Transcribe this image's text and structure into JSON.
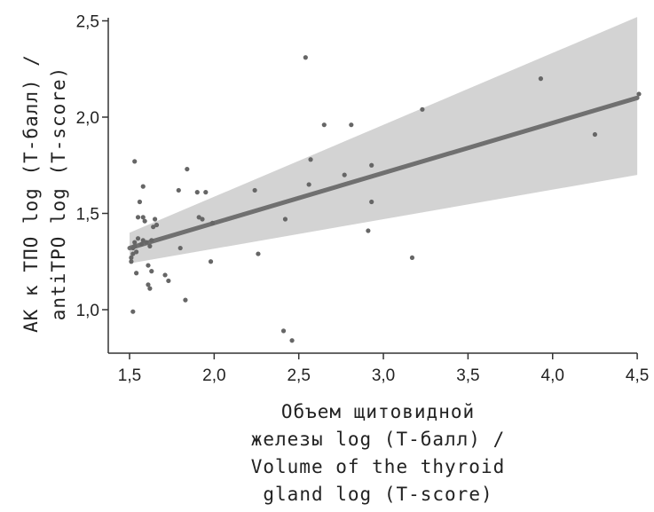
{
  "chart_data": {
    "type": "scatter",
    "xlabel_lines": [
      "Объем щитовидной",
      "железы log (Т-балл) /",
      "Volume of the thyroid",
      "gland log (T-score)"
    ],
    "ylabel_lines": [
      "АК к ТПО log (Т-балл) /",
      "antiTPO log (T-score)"
    ],
    "xlim": [
      1.4,
      4.5
    ],
    "ylim": [
      0.8,
      2.55
    ],
    "x_ticks": [
      1.5,
      2.0,
      2.5,
      3.0,
      3.5,
      4.0,
      4.5
    ],
    "x_tick_labels": [
      "1,5",
      "2,0",
      "2,5",
      "3,0",
      "3,5",
      "4,0",
      "4,5"
    ],
    "y_ticks": [
      1.0,
      1.5,
      2.0,
      2.5
    ],
    "y_tick_labels": [
      "1,0",
      "1,5",
      "2,0",
      "2,5"
    ],
    "grid": false,
    "points": [
      {
        "x": 1.52,
        "y": 0.99
      },
      {
        "x": 1.51,
        "y": 1.25
      },
      {
        "x": 1.51,
        "y": 1.27
      },
      {
        "x": 1.52,
        "y": 1.29
      },
      {
        "x": 1.52,
        "y": 1.32
      },
      {
        "x": 1.53,
        "y": 1.33
      },
      {
        "x": 1.53,
        "y": 1.35
      },
      {
        "x": 1.54,
        "y": 1.3
      },
      {
        "x": 1.54,
        "y": 1.19
      },
      {
        "x": 1.55,
        "y": 1.48
      },
      {
        "x": 1.55,
        "y": 1.37
      },
      {
        "x": 1.56,
        "y": 1.56
      },
      {
        "x": 1.57,
        "y": 1.34
      },
      {
        "x": 1.58,
        "y": 1.36
      },
      {
        "x": 1.58,
        "y": 1.64
      },
      {
        "x": 1.58,
        "y": 1.48
      },
      {
        "x": 1.59,
        "y": 1.46
      },
      {
        "x": 1.6,
        "y": 1.35
      },
      {
        "x": 1.61,
        "y": 1.23
      },
      {
        "x": 1.61,
        "y": 1.13
      },
      {
        "x": 1.62,
        "y": 1.11
      },
      {
        "x": 1.62,
        "y": 1.33
      },
      {
        "x": 1.63,
        "y": 1.36
      },
      {
        "x": 1.63,
        "y": 1.2
      },
      {
        "x": 1.64,
        "y": 1.43
      },
      {
        "x": 1.65,
        "y": 1.47
      },
      {
        "x": 1.66,
        "y": 1.44
      },
      {
        "x": 1.53,
        "y": 1.77
      },
      {
        "x": 1.71,
        "y": 1.18
      },
      {
        "x": 1.73,
        "y": 1.15
      },
      {
        "x": 1.79,
        "y": 1.62
      },
      {
        "x": 1.8,
        "y": 1.32
      },
      {
        "x": 1.83,
        "y": 1.05
      },
      {
        "x": 1.84,
        "y": 1.73
      },
      {
        "x": 1.9,
        "y": 1.61
      },
      {
        "x": 1.91,
        "y": 1.48
      },
      {
        "x": 1.93,
        "y": 1.47
      },
      {
        "x": 1.95,
        "y": 1.61
      },
      {
        "x": 1.98,
        "y": 1.25
      },
      {
        "x": 1.99,
        "y": 1.45
      },
      {
        "x": 2.24,
        "y": 1.62
      },
      {
        "x": 2.26,
        "y": 1.29
      },
      {
        "x": 2.41,
        "y": 0.89
      },
      {
        "x": 2.42,
        "y": 1.47
      },
      {
        "x": 2.46,
        "y": 0.84
      },
      {
        "x": 2.54,
        "y": 2.31
      },
      {
        "x": 2.56,
        "y": 1.65
      },
      {
        "x": 2.57,
        "y": 1.78
      },
      {
        "x": 2.65,
        "y": 1.96
      },
      {
        "x": 2.77,
        "y": 1.7
      },
      {
        "x": 2.81,
        "y": 1.96
      },
      {
        "x": 2.91,
        "y": 1.41
      },
      {
        "x": 2.93,
        "y": 1.75
      },
      {
        "x": 2.93,
        "y": 1.56
      },
      {
        "x": 3.17,
        "y": 1.27
      },
      {
        "x": 3.23,
        "y": 2.04
      },
      {
        "x": 3.93,
        "y": 2.2
      },
      {
        "x": 4.25,
        "y": 1.91
      },
      {
        "x": 4.51,
        "y": 2.12
      }
    ],
    "fit_line": {
      "x": [
        1.5,
        4.5
      ],
      "y": [
        1.32,
        2.1
      ]
    },
    "confidence_band": {
      "x": [
        1.5,
        4.5
      ],
      "lower": [
        1.24,
        1.7
      ],
      "upper": [
        1.4,
        2.52
      ]
    },
    "colors": {
      "points": "#666666",
      "fit_line": "#707070",
      "band": "#d3d3d3",
      "axis": "#333333"
    }
  }
}
